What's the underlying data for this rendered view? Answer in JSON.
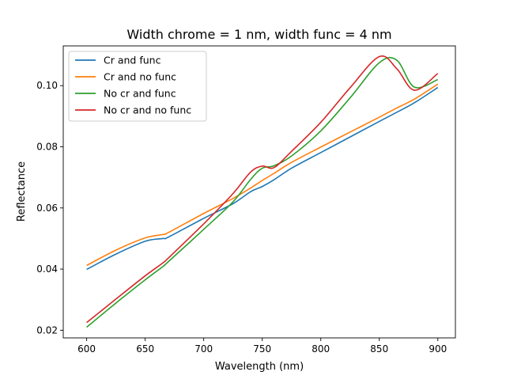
{
  "chart_data": {
    "type": "line",
    "title": "Width chrome = 1 nm, width func = 4 nm",
    "xlabel": "Wavelength (nm)",
    "ylabel": "Reflectance",
    "xlim": [
      580,
      915
    ],
    "ylim": [
      0.0175,
      0.113
    ],
    "xticks": [
      600,
      650,
      700,
      750,
      800,
      850,
      900
    ],
    "xtick_labels": [
      "600",
      "650",
      "700",
      "750",
      "800",
      "850",
      "900"
    ],
    "yticks": [
      0.02,
      0.04,
      0.06,
      0.08,
      0.1
    ],
    "ytick_labels": [
      "0.02",
      "0.04",
      "0.06",
      "0.08",
      "0.10"
    ],
    "grid": false,
    "legend_position": "top-left",
    "x": [
      600,
      625,
      650,
      665,
      670,
      700,
      725,
      740,
      750,
      760,
      775,
      800,
      825,
      850,
      865,
      880,
      900
    ],
    "series": [
      {
        "name": "Cr and func",
        "color": "#1f77b4",
        "values": [
          0.0399,
          0.0449,
          0.0491,
          0.05,
          0.0505,
          0.0566,
          0.0614,
          0.0653,
          0.067,
          0.0692,
          0.073,
          0.0781,
          0.0832,
          0.0883,
          0.0913,
          0.0944,
          0.0994
        ]
      },
      {
        "name": "Cr and no func",
        "color": "#ff7f0e",
        "values": [
          0.0412,
          0.0462,
          0.0502,
          0.0513,
          0.052,
          0.0582,
          0.0631,
          0.0665,
          0.069,
          0.0713,
          0.0749,
          0.0799,
          0.0848,
          0.0897,
          0.0927,
          0.0956,
          0.1005
        ]
      },
      {
        "name": "No cr and func",
        "color": "#2ca02c",
        "values": [
          0.021,
          0.0289,
          0.0365,
          0.0408,
          0.0425,
          0.053,
          0.062,
          0.0693,
          0.073,
          0.0738,
          0.077,
          0.0852,
          0.096,
          0.1075,
          0.1083,
          0.0995,
          0.102
        ]
      },
      {
        "name": "No cr and no func",
        "color": "#d62728",
        "values": [
          0.0225,
          0.0302,
          0.0378,
          0.042,
          0.0437,
          0.0548,
          0.0647,
          0.0717,
          0.0737,
          0.0732,
          0.0785,
          0.088,
          0.0993,
          0.1095,
          0.1055,
          0.0985,
          0.104
        ]
      }
    ]
  }
}
